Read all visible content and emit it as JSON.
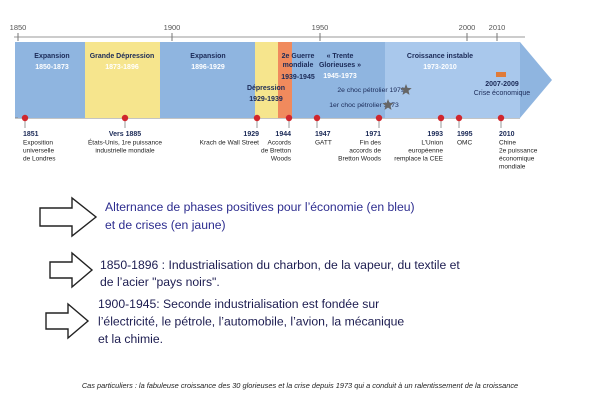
{
  "timeline": {
    "years": [
      "1850",
      "1900",
      "1950",
      "2000",
      "2010"
    ],
    "phases": [
      {
        "title": [
          "Expansion"
        ],
        "period": "1850-1873"
      },
      {
        "title": [
          "Grande Dépression"
        ],
        "period": "1873-1896"
      },
      {
        "title": [
          "Expansion"
        ],
        "period": "1896-1929"
      },
      {
        "title": [
          "Dépression"
        ],
        "period": "1929-1939"
      },
      {
        "title": [
          "2e Guerre",
          "mondiale"
        ],
        "period": "1939-1945"
      },
      {
        "title": [
          "« Trente",
          "Glorieuses »"
        ],
        "period": "1945-1973"
      },
      {
        "title": [
          "Croissance instable"
        ],
        "period": "1973-2010"
      },
      {
        "title": [
          "2007-2009"
        ],
        "period": "Crise économique"
      }
    ],
    "shocks": [
      "2e choc pétrolier 1979",
      "1er choc pétrolier 1973"
    ],
    "events": [
      {
        "year": "1851",
        "text": [
          "Exposition",
          "universelle",
          "de Londres"
        ]
      },
      {
        "year": "Vers 1885",
        "text": [
          "États-Unis, 1re puissance",
          "industrielle mondiale"
        ]
      },
      {
        "year": "1929",
        "text": [
          "Krach de Wall Street"
        ]
      },
      {
        "year": "1944",
        "text": [
          "Accords",
          "de Bretton",
          "Woods"
        ]
      },
      {
        "year": "1947",
        "text": [
          "GATT"
        ]
      },
      {
        "year": "1971",
        "text": [
          "Fin des",
          "accords de",
          "Bretton Woods"
        ]
      },
      {
        "year": "1993",
        "text": [
          "L’Union",
          "européenne",
          "remplace la CEE"
        ]
      },
      {
        "year": "1995",
        "text": [
          "OMC"
        ]
      },
      {
        "year": "2010",
        "text": [
          "Chine",
          "2e puissance",
          "économique",
          "mondiale"
        ]
      }
    ]
  },
  "bullets": [
    [
      "Alternance de phases positives pour l’économie (en bleu)",
      "et de crises (en jaune)"
    ],
    [
      "1850-1896 : Industrialisation  du charbon, de la vapeur, du textile et",
      "de l’acier \"pays noirs\"."
    ],
    [
      "1900-1945: Seconde industrialisation est fondée sur",
      "l’électricité, le pétrole, l’automobile, l’avion, la mécanique",
      "et la chimie."
    ]
  ],
  "footer": "Cas particuliers : la fabuleuse croissance des 30 glorieuses et la crise depuis 1973 qui a conduit à un ralentissement de la croissance"
}
